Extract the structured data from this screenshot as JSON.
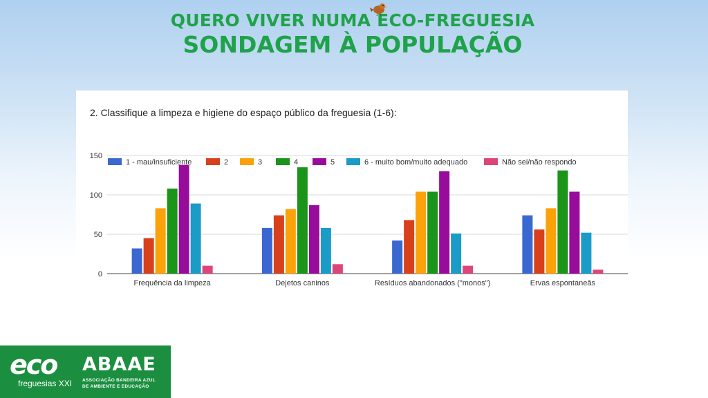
{
  "slide": {
    "title_line1": "QUERO VIVER NUMA ECO-FREGUESIA",
    "title_line2": "SONDAGEM À POPULAÇÃO"
  },
  "question": "2.  Classifique a limpeza e higiene do espaço público da freguesia (1-6):",
  "logo": {
    "eco_text": "eco",
    "eco_sub": "freguesias XXI",
    "abaae_text": "ABAAE",
    "abaae_sub1": "ASSOCIAÇÃO BANDEIRA AZUL",
    "abaae_sub2": "DE AMBIENTE E EDUCAÇÃO"
  },
  "chart_data": {
    "type": "bar",
    "title": "2.  Classifique a limpeza e higiene do espaço público da freguesia (1-6):",
    "categories": [
      "Frequência da limpeza",
      "Dejetos caninos",
      "Resíduos abandonados (\"monos\")",
      "Ervas espontaneâs"
    ],
    "ylim": [
      0,
      150
    ],
    "yticks": [
      0,
      50,
      100,
      150
    ],
    "grid": true,
    "legend_position": "top",
    "series": [
      {
        "name": "1 - mau/insuficiente",
        "color": "#3b67d1",
        "values": [
          32,
          58,
          42,
          74
        ]
      },
      {
        "name": "2",
        "color": "#d8401c",
        "values": [
          45,
          74,
          68,
          56
        ]
      },
      {
        "name": "3",
        "color": "#fba20b",
        "values": [
          83,
          82,
          104,
          83
        ]
      },
      {
        "name": "4",
        "color": "#1b941a",
        "values": [
          108,
          135,
          104,
          131
        ]
      },
      {
        "name": "5",
        "color": "#970c9a",
        "values": [
          138,
          87,
          130,
          104
        ]
      },
      {
        "name": "6 - muito bom/muito adequado",
        "color": "#1a9bc8",
        "values": [
          89,
          58,
          51,
          52
        ]
      },
      {
        "name": "Não sei/não respondo",
        "color": "#dd457a",
        "values": [
          10,
          12,
          10,
          5
        ]
      }
    ]
  }
}
